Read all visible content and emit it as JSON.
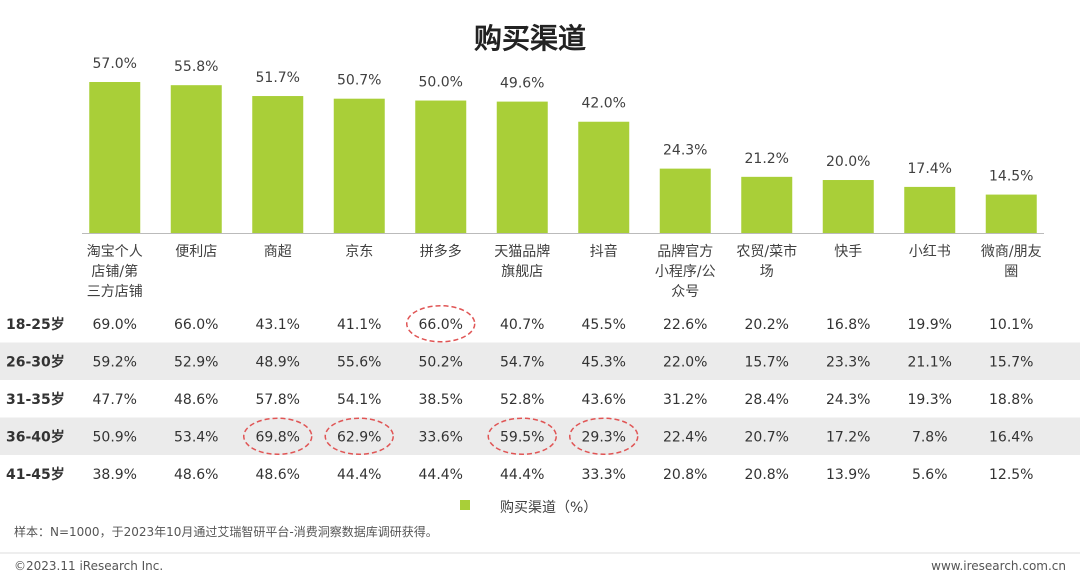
{
  "chart_data": {
    "type": "bar",
    "title": "购买渠道",
    "categories": [
      [
        "淘宝个人",
        "店铺/第",
        "三方店铺"
      ],
      [
        "便利店"
      ],
      [
        "商超"
      ],
      [
        "京东"
      ],
      [
        "拼多多"
      ],
      [
        "天猫品牌",
        "旗舰店"
      ],
      [
        "抖音"
      ],
      [
        "品牌官方",
        "小程序/公",
        "众号"
      ],
      [
        "农贸/菜市",
        "场"
      ],
      [
        "快手"
      ],
      [
        "小红书"
      ],
      [
        "微商/朋友",
        "圈"
      ]
    ],
    "series": [
      {
        "name": "购买渠道（%）",
        "values": [
          57.0,
          55.8,
          51.7,
          50.7,
          50.0,
          49.6,
          42.0,
          24.3,
          21.2,
          20.0,
          17.4,
          14.5
        ],
        "labels": [
          "57.0%",
          "55.8%",
          "51.7%",
          "50.7%",
          "50.0%",
          "49.6%",
          "42.0%",
          "24.3%",
          "21.2%",
          "20.0%",
          "17.4%",
          "14.5%"
        ]
      }
    ],
    "ylim": [
      0,
      57.0
    ],
    "bar_color": "#a9cf38",
    "legend": "bottom",
    "table": {
      "rows": [
        {
          "label": "18-25岁",
          "values": [
            "69.0%",
            "66.0%",
            "43.1%",
            "41.1%",
            "66.0%",
            "40.7%",
            "45.5%",
            "22.6%",
            "20.2%",
            "16.8%",
            "19.9%",
            "10.1%"
          ],
          "circled": [
            4
          ]
        },
        {
          "label": "26-30岁",
          "values": [
            "59.2%",
            "52.9%",
            "48.9%",
            "55.6%",
            "50.2%",
            "54.7%",
            "45.3%",
            "22.0%",
            "15.7%",
            "23.3%",
            "21.1%",
            "15.7%"
          ],
          "circled": []
        },
        {
          "label": "31-35岁",
          "values": [
            "47.7%",
            "48.6%",
            "57.8%",
            "54.1%",
            "38.5%",
            "52.8%",
            "43.6%",
            "31.2%",
            "28.4%",
            "24.3%",
            "19.3%",
            "18.8%"
          ],
          "circled": []
        },
        {
          "label": "36-40岁",
          "values": [
            "50.9%",
            "53.4%",
            "69.8%",
            "62.9%",
            "33.6%",
            "59.5%",
            "29.3%",
            "22.4%",
            "20.7%",
            "17.2%",
            "7.8%",
            "16.4%"
          ],
          "circled": [
            2,
            3,
            5,
            6
          ]
        },
        {
          "label": "41-45岁",
          "values": [
            "38.9%",
            "48.6%",
            "48.6%",
            "44.4%",
            "44.4%",
            "44.4%",
            "33.3%",
            "20.8%",
            "20.8%",
            "13.9%",
            "5.6%",
            "12.5%"
          ],
          "circled": []
        }
      ],
      "circle_color": "#e05555",
      "stripe_color": "#ebebeb"
    }
  },
  "legend": {
    "label": "购买渠道（%）"
  },
  "note": "样本：N=1000，于2023年10月通过艾瑞智研平台-消费洞察数据库调研获得。",
  "footer": {
    "left": "©2023.11 iResearch Inc.",
    "right": "www.iresearch.com.cn"
  }
}
